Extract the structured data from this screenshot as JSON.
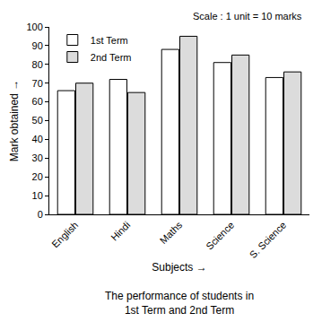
{
  "chart_data": {
    "type": "bar",
    "title": "The performance of students in\n1st Term and 2nd Term",
    "x_label": "Subjects →",
    "y_label": "Mark obtained →",
    "annotations": [
      "Scale : 1 unit = 10 marks"
    ],
    "categories": [
      "English",
      "Hindi",
      "Maths",
      "Science",
      "S. Science"
    ],
    "series": [
      {
        "name": "1st Term",
        "color": "#ffffff",
        "values": [
          66,
          72,
          88,
          81,
          73
        ]
      },
      {
        "name": "2nd Term",
        "color": "#dcdcdc",
        "values": [
          70,
          65,
          95,
          85,
          76
        ]
      }
    ],
    "ylim": [
      0,
      100
    ],
    "yticks": [
      0,
      10,
      20,
      30,
      40,
      50,
      60,
      70,
      80,
      90,
      100
    ],
    "grid": false,
    "legend": "top left"
  }
}
